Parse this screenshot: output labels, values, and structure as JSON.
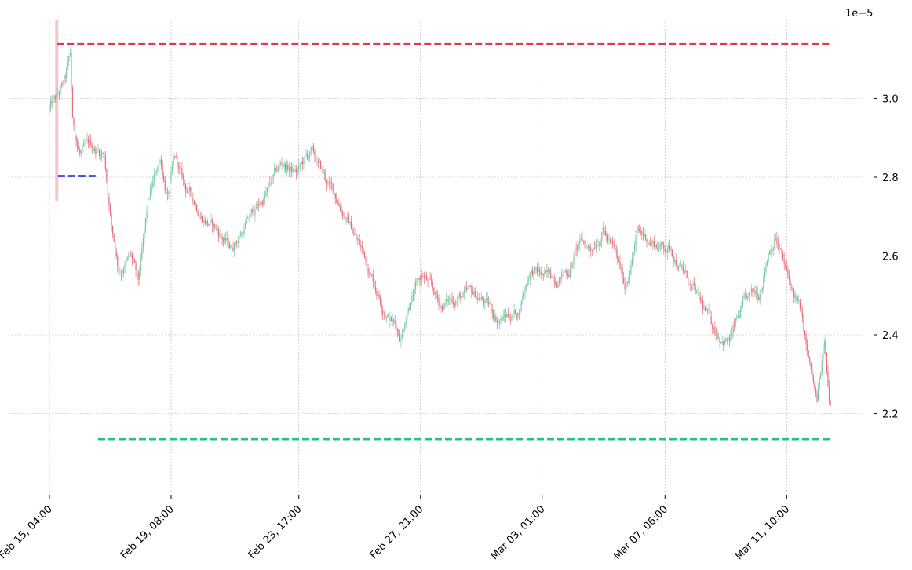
{
  "chart_data": {
    "type": "candlestick",
    "title": "",
    "xlabel": "",
    "ylabel": "",
    "y_offset_label": "1e−5",
    "y_scale": 1e-05,
    "ylim": [
      2.0,
      3.2
    ],
    "grid": true,
    "x_ticks": [
      {
        "date": "2024-02-15T04:00",
        "label": "Feb 15, 04:00"
      },
      {
        "date": "2024-02-19T08:00",
        "label": "Feb 19, 08:00"
      },
      {
        "date": "2024-02-23T17:00",
        "label": "Feb 23, 17:00"
      },
      {
        "date": "2024-02-27T21:00",
        "label": "Feb 27, 21:00"
      },
      {
        "date": "2024-03-03T01:00",
        "label": "Mar 03, 01:00"
      },
      {
        "date": "2024-03-07T06:00",
        "label": "Mar 07, 06:00"
      },
      {
        "date": "2024-03-11T10:00",
        "label": "Mar 11, 10:00"
      }
    ],
    "y_ticks": [
      {
        "value": 2.2,
        "label": "2.2"
      },
      {
        "value": 2.4,
        "label": "2.4"
      },
      {
        "value": 2.6,
        "label": "2.6"
      },
      {
        "value": 2.8,
        "label": "2.8"
      },
      {
        "value": 3.0,
        "label": "3.0"
      }
    ],
    "x_range": [
      "2024-02-14T22:00",
      "2024-03-13T00:00"
    ],
    "price_path": [
      [
        "2024-02-15T04:00",
        2.97
      ],
      [
        "2024-02-15T12:00",
        3.0
      ],
      [
        "2024-02-15T18:00",
        3.04
      ],
      [
        "2024-02-15T22:00",
        3.1
      ],
      [
        "2024-02-16T00:00",
        2.93
      ],
      [
        "2024-02-16T06:00",
        2.86
      ],
      [
        "2024-02-16T16:00",
        2.87
      ],
      [
        "2024-02-17T02:00",
        2.86
      ],
      [
        "2024-02-17T08:00",
        2.68
      ],
      [
        "2024-02-17T14:00",
        2.57
      ],
      [
        "2024-02-18T00:00",
        2.6
      ],
      [
        "2024-02-18T06:00",
        2.52
      ],
      [
        "2024-02-18T14:00",
        2.72
      ],
      [
        "2024-02-19T00:00",
        2.85
      ],
      [
        "2024-02-19T06:00",
        2.75
      ],
      [
        "2024-02-19T12:00",
        2.84
      ],
      [
        "2024-02-19T20:00",
        2.77
      ],
      [
        "2024-02-20T08:00",
        2.72
      ],
      [
        "2024-02-21T00:00",
        2.66
      ],
      [
        "2024-02-21T10:00",
        2.62
      ],
      [
        "2024-02-22T02:00",
        2.7
      ],
      [
        "2024-02-22T12:00",
        2.74
      ],
      [
        "2024-02-23T04:00",
        2.83
      ],
      [
        "2024-02-23T16:00",
        2.81
      ],
      [
        "2024-02-24T04:00",
        2.86
      ],
      [
        "2024-02-24T16:00",
        2.79
      ],
      [
        "2024-02-25T06:00",
        2.72
      ],
      [
        "2024-02-26T00:00",
        2.6
      ],
      [
        "2024-02-26T14:00",
        2.49
      ],
      [
        "2024-02-27T06:00",
        2.4
      ],
      [
        "2024-02-27T12:00",
        2.49
      ],
      [
        "2024-02-28T00:00",
        2.55
      ],
      [
        "2024-02-28T14:00",
        2.47
      ],
      [
        "2024-02-29T06:00",
        2.5
      ],
      [
        "2024-03-01T00:00",
        2.49
      ],
      [
        "2024-03-01T14:00",
        2.44
      ],
      [
        "2024-03-02T06:00",
        2.46
      ],
      [
        "2024-03-02T16:00",
        2.57
      ],
      [
        "2024-03-03T06:00",
        2.54
      ],
      [
        "2024-03-04T00:00",
        2.57
      ],
      [
        "2024-03-04T08:00",
        2.63
      ],
      [
        "2024-03-04T18:00",
        2.62
      ],
      [
        "2024-03-05T04:00",
        2.68
      ],
      [
        "2024-03-05T14:00",
        2.6
      ],
      [
        "2024-03-05T22:00",
        2.52
      ],
      [
        "2024-03-06T08:00",
        2.66
      ],
      [
        "2024-03-07T00:00",
        2.63
      ],
      [
        "2024-03-07T12:00",
        2.62
      ],
      [
        "2024-03-08T00:00",
        2.55
      ],
      [
        "2024-03-08T12:00",
        2.47
      ],
      [
        "2024-03-09T00:00",
        2.41
      ],
      [
        "2024-03-09T12:00",
        2.39
      ],
      [
        "2024-03-10T00:00",
        2.47
      ],
      [
        "2024-03-10T12:00",
        2.5
      ],
      [
        "2024-03-10T20:00",
        2.62
      ],
      [
        "2024-03-11T02:00",
        2.66
      ],
      [
        "2024-03-11T12:00",
        2.54
      ],
      [
        "2024-03-11T22:00",
        2.46
      ],
      [
        "2024-03-12T06:00",
        2.31
      ],
      [
        "2024-03-12T12:00",
        2.22
      ],
      [
        "2024-03-12T18:00",
        2.37
      ],
      [
        "2024-03-12T22:00",
        2.22
      ]
    ],
    "candle_interval_hours": 1,
    "candle_colors": {
      "up": "#77c8a4",
      "down": "#e56e78"
    },
    "lines": [
      {
        "y": 3.138,
        "x_start": "2024-02-15T10:00",
        "x_end": "2024-03-12T22:00",
        "style": "dashed",
        "color": "#e0394f"
      },
      {
        "y": 2.135,
        "x_start": "2024-02-16T20:00",
        "x_end": "2024-03-12T22:00",
        "style": "dashed",
        "color": "#2dbd88"
      },
      {
        "y": 2.803,
        "x_start": "2024-02-15T11:00",
        "x_end": "2024-02-16T20:00",
        "style": "dashed",
        "color": "#1a22d4"
      }
    ],
    "highlight": {
      "x": "2024-02-15T10:00",
      "y_low": 2.74,
      "y_high": 3.2,
      "color": "#f4b0b8"
    }
  }
}
